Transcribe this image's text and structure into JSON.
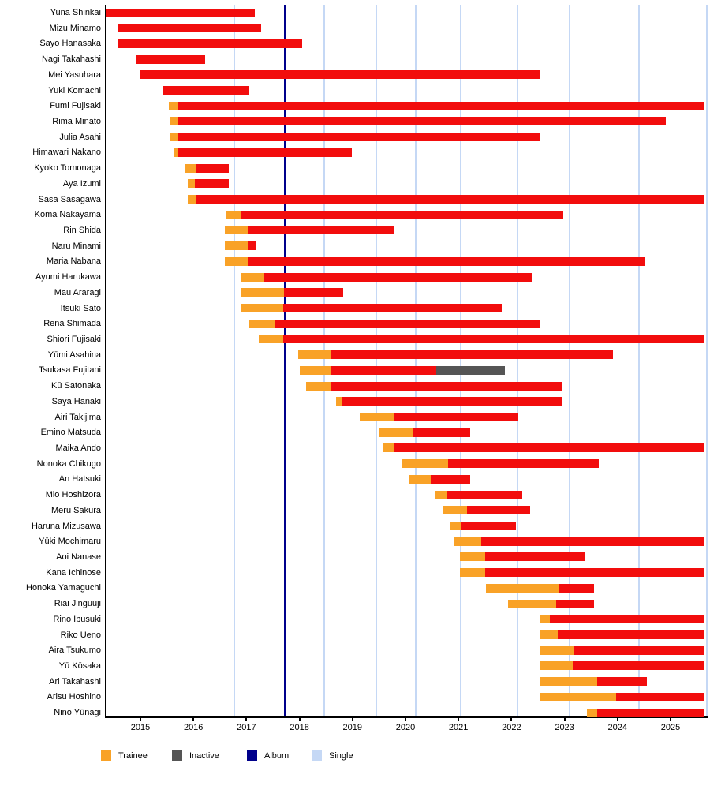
{
  "legend": [
    {
      "label": "Trainee",
      "color": "#F9A227"
    },
    {
      "label": "Inactive",
      "color": "#555555"
    },
    {
      "label": "Album",
      "color": "#00008B"
    },
    {
      "label": "Single",
      "color": "#C5D8F5"
    }
  ],
  "chart_data": {
    "type": "gantt-timeline",
    "x_axis": {
      "min": 2014.36,
      "max": 2025.7,
      "ticks": [
        2015,
        2016,
        2017,
        2018,
        2019,
        2020,
        2021,
        2022,
        2023,
        2024,
        2025
      ]
    },
    "colors": {
      "trainee": "#F9A227",
      "member": "#F20D0D",
      "inactive": "#555555",
      "album_line": "#00008B",
      "single_line": "#C5D8F5"
    },
    "event_lines": {
      "album": [
        2017.72
      ],
      "single": [
        2016.77,
        2018.46,
        2019.45,
        2020.2,
        2021.04,
        2022.11,
        2023.1,
        2024.41,
        2025.68
      ]
    },
    "members": [
      {
        "name": "Yuna Shinkai",
        "segments": [
          [
            "member",
            2014.36,
            2017.16
          ]
        ]
      },
      {
        "name": "Mizu Minamo",
        "segments": [
          [
            "member",
            2014.59,
            2017.28
          ]
        ]
      },
      {
        "name": "Sayo Hanasaka",
        "segments": [
          [
            "member",
            2014.59,
            2018.05
          ]
        ]
      },
      {
        "name": "Nagi Takahashi",
        "segments": [
          [
            "member",
            2014.92,
            2016.22
          ]
        ]
      },
      {
        "name": "Mei Yasuhara",
        "segments": [
          [
            "member",
            2015.0,
            2022.55
          ]
        ]
      },
      {
        "name": "Yuki Komachi",
        "segments": [
          [
            "member",
            2015.41,
            2017.05
          ]
        ]
      },
      {
        "name": "Fumi Fujisaki",
        "segments": [
          [
            "trainee",
            2015.53,
            2015.71
          ],
          [
            "member",
            2015.71,
            2025.64
          ]
        ]
      },
      {
        "name": "Rima Minato",
        "segments": [
          [
            "trainee",
            2015.56,
            2015.71
          ],
          [
            "member",
            2015.71,
            2024.91
          ]
        ]
      },
      {
        "name": "Julia Asahi",
        "segments": [
          [
            "trainee",
            2015.56,
            2015.71
          ],
          [
            "member",
            2015.71,
            2022.55
          ]
        ]
      },
      {
        "name": "Himawari Nakano",
        "segments": [
          [
            "trainee",
            2015.64,
            2015.71
          ],
          [
            "member",
            2015.71,
            2018.99
          ]
        ]
      },
      {
        "name": "Kyoko Tomonaga",
        "segments": [
          [
            "trainee",
            2015.83,
            2016.06
          ],
          [
            "member",
            2016.06,
            2016.66
          ]
        ]
      },
      {
        "name": "Aya Izumi",
        "segments": [
          [
            "trainee",
            2015.89,
            2016.02
          ],
          [
            "member",
            2016.02,
            2016.66
          ]
        ]
      },
      {
        "name": "Sasa Sasagawa",
        "segments": [
          [
            "trainee",
            2015.89,
            2016.06
          ],
          [
            "member",
            2016.06,
            2025.64
          ]
        ]
      },
      {
        "name": "Koma Nakayama",
        "segments": [
          [
            "trainee",
            2016.6,
            2016.91
          ],
          [
            "member",
            2016.91,
            2022.97
          ]
        ]
      },
      {
        "name": "Rin Shida",
        "segments": [
          [
            "trainee",
            2016.59,
            2017.02
          ],
          [
            "member",
            2017.02,
            2019.79
          ]
        ]
      },
      {
        "name": "Naru Minami",
        "segments": [
          [
            "trainee",
            2016.59,
            2017.02
          ],
          [
            "member",
            2017.02,
            2017.17
          ]
        ]
      },
      {
        "name": "Maria Nabana",
        "segments": [
          [
            "trainee",
            2016.59,
            2017.02
          ],
          [
            "member",
            2017.02,
            2024.51
          ]
        ]
      },
      {
        "name": "Ayumi Harukawa",
        "segments": [
          [
            "trainee",
            2016.91,
            2017.33
          ],
          [
            "member",
            2017.33,
            2022.39
          ]
        ]
      },
      {
        "name": "Mau Araragi",
        "segments": [
          [
            "trainee",
            2016.91,
            2017.71
          ],
          [
            "member",
            2017.71,
            2018.83
          ]
        ]
      },
      {
        "name": "Itsuki Sato",
        "segments": [
          [
            "trainee",
            2016.91,
            2017.7
          ],
          [
            "member",
            2017.7,
            2021.82
          ]
        ]
      },
      {
        "name": "Rena Shimada",
        "segments": [
          [
            "trainee",
            2017.06,
            2017.54
          ],
          [
            "member",
            2017.54,
            2022.55
          ]
        ]
      },
      {
        "name": "Shiori Fujisaki",
        "segments": [
          [
            "trainee",
            2017.23,
            2017.7
          ],
          [
            "member",
            2017.7,
            2025.64
          ]
        ]
      },
      {
        "name": "Yūmi Asahina",
        "segments": [
          [
            "trainee",
            2017.97,
            2018.6
          ],
          [
            "member",
            2018.6,
            2023.91
          ]
        ]
      },
      {
        "name": "Tsukasa Fujitani",
        "segments": [
          [
            "trainee",
            2018.0,
            2018.59
          ],
          [
            "member",
            2018.59,
            2020.58
          ],
          [
            "inactive",
            2020.58,
            2021.87
          ]
        ]
      },
      {
        "name": "Kū Satonaka",
        "segments": [
          [
            "trainee",
            2018.13,
            2018.6
          ],
          [
            "member",
            2018.6,
            2022.96
          ]
        ]
      },
      {
        "name": "Saya Hanaki",
        "segments": [
          [
            "trainee",
            2018.69,
            2018.81
          ],
          [
            "member",
            2018.81,
            2022.96
          ]
        ]
      },
      {
        "name": "Airi Takijima",
        "segments": [
          [
            "trainee",
            2019.14,
            2019.77
          ],
          [
            "member",
            2019.77,
            2022.13
          ]
        ]
      },
      {
        "name": "Emino Matsuda",
        "segments": [
          [
            "trainee",
            2019.5,
            2020.13
          ],
          [
            "member",
            2020.13,
            2021.22
          ]
        ]
      },
      {
        "name": "Maika Ando",
        "segments": [
          [
            "trainee",
            2019.57,
            2019.77
          ],
          [
            "member",
            2019.77,
            2025.64
          ]
        ]
      },
      {
        "name": "Nonoka Chikugo",
        "segments": [
          [
            "trainee",
            2019.93,
            2020.8
          ],
          [
            "member",
            2020.8,
            2023.65
          ]
        ]
      },
      {
        "name": "An Hatsuki",
        "segments": [
          [
            "trainee",
            2020.08,
            2020.47
          ],
          [
            "member",
            2020.47,
            2021.22
          ]
        ]
      },
      {
        "name": "Mio Hoshizora",
        "segments": [
          [
            "trainee",
            2020.57,
            2020.79
          ],
          [
            "member",
            2020.79,
            2022.2
          ]
        ]
      },
      {
        "name": "Meru Sakura",
        "segments": [
          [
            "trainee",
            2020.71,
            2021.16
          ],
          [
            "member",
            2021.16,
            2022.35
          ]
        ]
      },
      {
        "name": "Haruna Mizusawa",
        "segments": [
          [
            "trainee",
            2020.84,
            2021.06
          ],
          [
            "member",
            2021.06,
            2022.08
          ]
        ]
      },
      {
        "name": "Yūki Mochimaru",
        "segments": [
          [
            "trainee",
            2020.92,
            2021.43
          ],
          [
            "member",
            2021.43,
            2025.64
          ]
        ]
      },
      {
        "name": "Aoi Nanase",
        "segments": [
          [
            "trainee",
            2021.03,
            2021.5
          ],
          [
            "member",
            2021.5,
            2023.39
          ]
        ]
      },
      {
        "name": "Kana Ichinose",
        "segments": [
          [
            "trainee",
            2021.03,
            2021.5
          ],
          [
            "member",
            2021.5,
            2025.64
          ]
        ]
      },
      {
        "name": "Honoka Yamaguchi",
        "segments": [
          [
            "trainee",
            2021.52,
            2022.89
          ],
          [
            "member",
            2022.89,
            2023.55
          ]
        ]
      },
      {
        "name": "Riai Jinguuji",
        "segments": [
          [
            "trainee",
            2021.93,
            2022.85
          ],
          [
            "member",
            2022.85,
            2023.55
          ]
        ]
      },
      {
        "name": "Rino Ibusuki",
        "segments": [
          [
            "trainee",
            2022.54,
            2022.73
          ],
          [
            "member",
            2022.73,
            2025.64
          ]
        ]
      },
      {
        "name": "Riko Ueno",
        "segments": [
          [
            "trainee",
            2022.53,
            2022.87
          ],
          [
            "member",
            2022.87,
            2025.64
          ]
        ]
      },
      {
        "name": "Aira Tsukumo",
        "segments": [
          [
            "trainee",
            2022.54,
            2023.17
          ],
          [
            "member",
            2023.17,
            2025.64
          ]
        ]
      },
      {
        "name": "Yū Kōsaka",
        "segments": [
          [
            "trainee",
            2022.54,
            2023.16
          ],
          [
            "member",
            2023.16,
            2025.64
          ]
        ]
      },
      {
        "name": "Ari Takahashi",
        "segments": [
          [
            "trainee",
            2022.53,
            2023.62
          ],
          [
            "member",
            2023.62,
            2024.56
          ]
        ]
      },
      {
        "name": "Arisu Hoshino",
        "segments": [
          [
            "trainee",
            2022.53,
            2023.97
          ],
          [
            "member",
            2023.97,
            2025.64
          ]
        ]
      },
      {
        "name": "Nino Yūnagi",
        "segments": [
          [
            "trainee",
            2023.43,
            2023.62
          ],
          [
            "member",
            2023.62,
            2025.64
          ]
        ]
      }
    ]
  }
}
